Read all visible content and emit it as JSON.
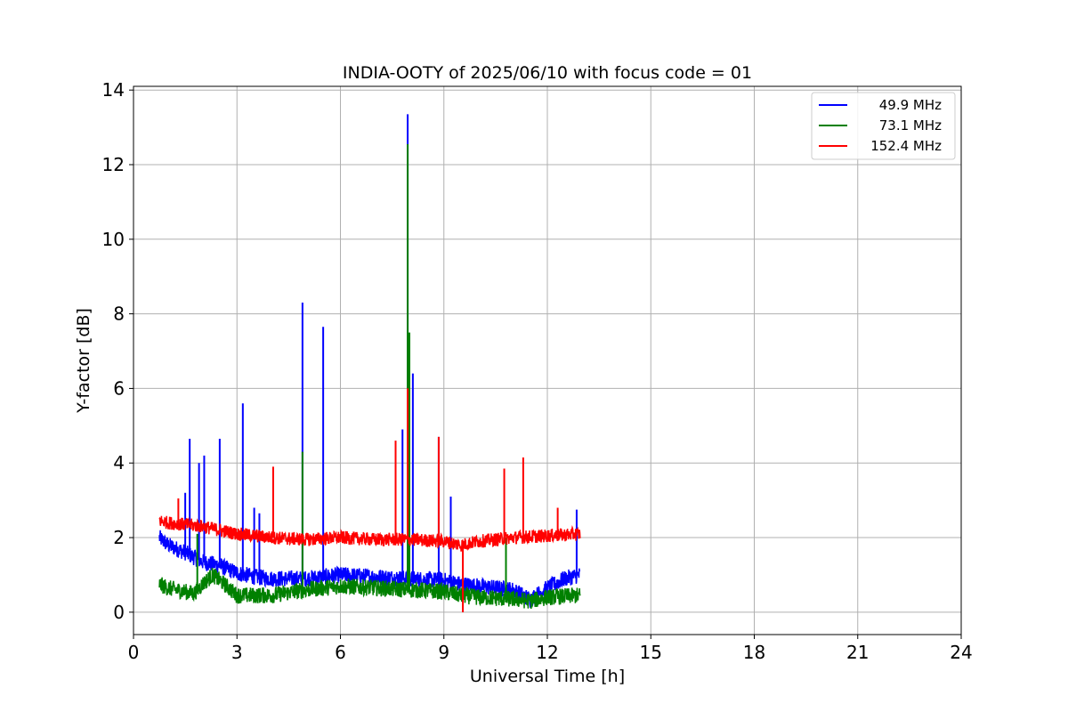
{
  "chart_data": {
    "type": "line",
    "title": "INDIA-OOTY of 2025/06/10 with focus code = 01",
    "xlabel": "Universal Time [h]",
    "ylabel": "Y-factor [dB]",
    "xlim": [
      0,
      24
    ],
    "ylim": [
      -0.6,
      14.1
    ],
    "xticks": [
      "0",
      "3",
      "6",
      "9",
      "12",
      "15",
      "18",
      "21",
      "24"
    ],
    "yticks": [
      "0",
      "2",
      "4",
      "6",
      "8",
      "10",
      "12",
      "14"
    ],
    "grid": true,
    "legend_position": "top-right",
    "series": [
      {
        "name": "49.9 MHz",
        "color": "#0000ff",
        "baseline": {
          "x": [
            0.75,
            1.0,
            1.5,
            2.0,
            2.5,
            3.0,
            3.5,
            4.0,
            5.0,
            6.0,
            7.0,
            8.0,
            9.0,
            9.5,
            10.0,
            11.0,
            11.5,
            12.0,
            12.5,
            12.95
          ],
          "y": [
            2.0,
            1.8,
            1.6,
            1.35,
            1.25,
            1.05,
            0.95,
            0.9,
            0.9,
            1.0,
            0.95,
            0.9,
            0.85,
            0.75,
            0.7,
            0.6,
            0.35,
            0.65,
            0.9,
            1.0
          ]
        },
        "spikes": [
          [
            1.5,
            3.2
          ],
          [
            1.63,
            4.65
          ],
          [
            1.9,
            4.0
          ],
          [
            2.05,
            4.2
          ],
          [
            2.5,
            4.65
          ],
          [
            3.17,
            5.6
          ],
          [
            3.5,
            2.8
          ],
          [
            3.65,
            2.65
          ],
          [
            4.9,
            8.3
          ],
          [
            5.5,
            7.65
          ],
          [
            7.8,
            4.9
          ],
          [
            7.95,
            13.35
          ],
          [
            8.1,
            6.4
          ],
          [
            8.85,
            4.7
          ],
          [
            9.2,
            3.1
          ],
          [
            12.85,
            2.75
          ]
        ]
      },
      {
        "name": "73.1 MHz",
        "color": "#008000",
        "baseline": {
          "x": [
            0.75,
            1.0,
            1.5,
            1.75,
            2.0,
            2.3,
            2.7,
            3.0,
            4.0,
            5.0,
            6.0,
            7.0,
            8.0,
            9.0,
            9.5,
            10.0,
            11.0,
            11.5,
            12.0,
            12.95
          ],
          "y": [
            0.75,
            0.65,
            0.55,
            0.5,
            0.75,
            1.0,
            0.7,
            0.45,
            0.45,
            0.6,
            0.7,
            0.65,
            0.6,
            0.55,
            0.45,
            0.4,
            0.35,
            0.3,
            0.4,
            0.45
          ]
        },
        "spikes": [
          [
            1.85,
            2.1
          ],
          [
            4.9,
            4.3
          ],
          [
            7.95,
            12.55
          ],
          [
            8.0,
            7.5
          ],
          [
            10.8,
            2.0
          ]
        ]
      },
      {
        "name": "152.4 MHz",
        "color": "#ff0000",
        "baseline": {
          "x": [
            0.75,
            1.0,
            2.0,
            3.0,
            4.0,
            5.0,
            6.0,
            7.0,
            8.0,
            9.0,
            9.5,
            10.0,
            11.0,
            12.0,
            12.95
          ],
          "y": [
            2.45,
            2.4,
            2.3,
            2.1,
            2.0,
            1.95,
            2.0,
            1.95,
            1.95,
            1.9,
            1.8,
            1.9,
            2.0,
            2.05,
            2.1
          ]
        },
        "spikes": [
          [
            1.3,
            3.05
          ],
          [
            4.05,
            3.9
          ],
          [
            7.6,
            4.6
          ],
          [
            7.95,
            6.0
          ],
          [
            8.85,
            4.7
          ],
          [
            10.75,
            3.85
          ],
          [
            11.3,
            4.15
          ],
          [
            12.3,
            2.8
          ]
        ],
        "dips": [
          [
            9.55,
            0.0
          ]
        ]
      }
    ]
  }
}
